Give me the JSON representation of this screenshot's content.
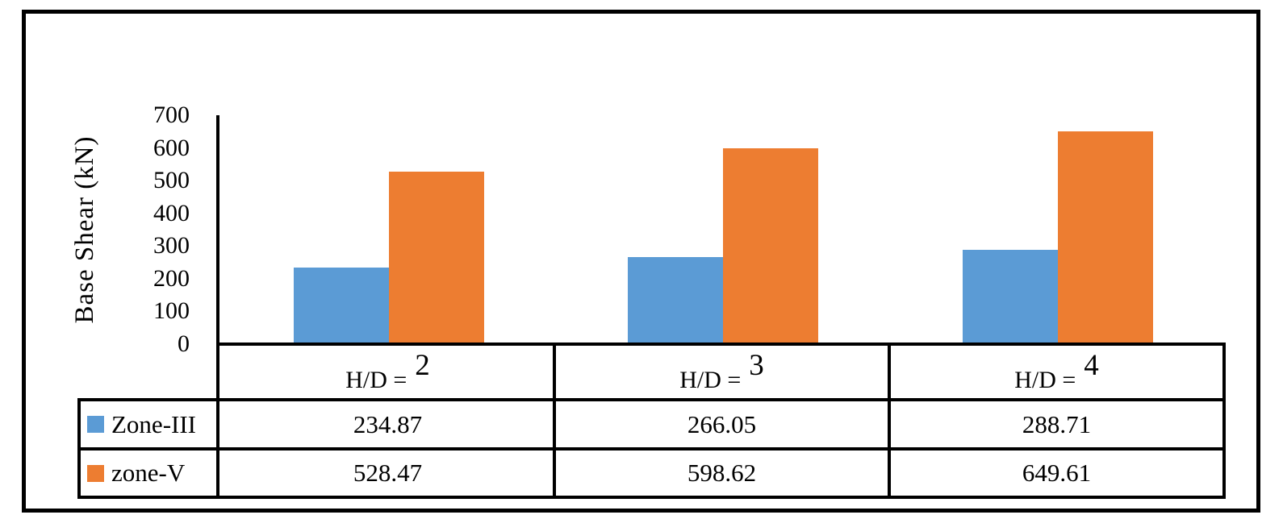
{
  "chart_data": {
    "type": "bar",
    "title": "",
    "xlabel": "",
    "ylabel": "Base Shear (kN)",
    "categories": [
      "H/D = 2",
      "H/D = 3",
      "H/D = 4"
    ],
    "category_labels": [
      {
        "prefix": "H/D =",
        "number": "2"
      },
      {
        "prefix": "H/D =",
        "number": "3"
      },
      {
        "prefix": "H/D =",
        "number": "4"
      }
    ],
    "series": [
      {
        "name": "Zone-III",
        "color": "#5B9BD5",
        "values": [
          234.87,
          266.05,
          288.71
        ],
        "display_values": [
          "234.87",
          "266.05",
          "288.71"
        ]
      },
      {
        "name": "zone-V",
        "color": "#ED7D31",
        "values": [
          528.47,
          598.62,
          649.61
        ],
        "display_values": [
          "528.47",
          "598.62",
          "649.61"
        ]
      }
    ],
    "ylim": [
      0,
      700
    ],
    "yticks": [
      0,
      100,
      200,
      300,
      400,
      500,
      600,
      700
    ],
    "grid": false,
    "legend_position": "data-table-left",
    "data_table_shown": true
  }
}
